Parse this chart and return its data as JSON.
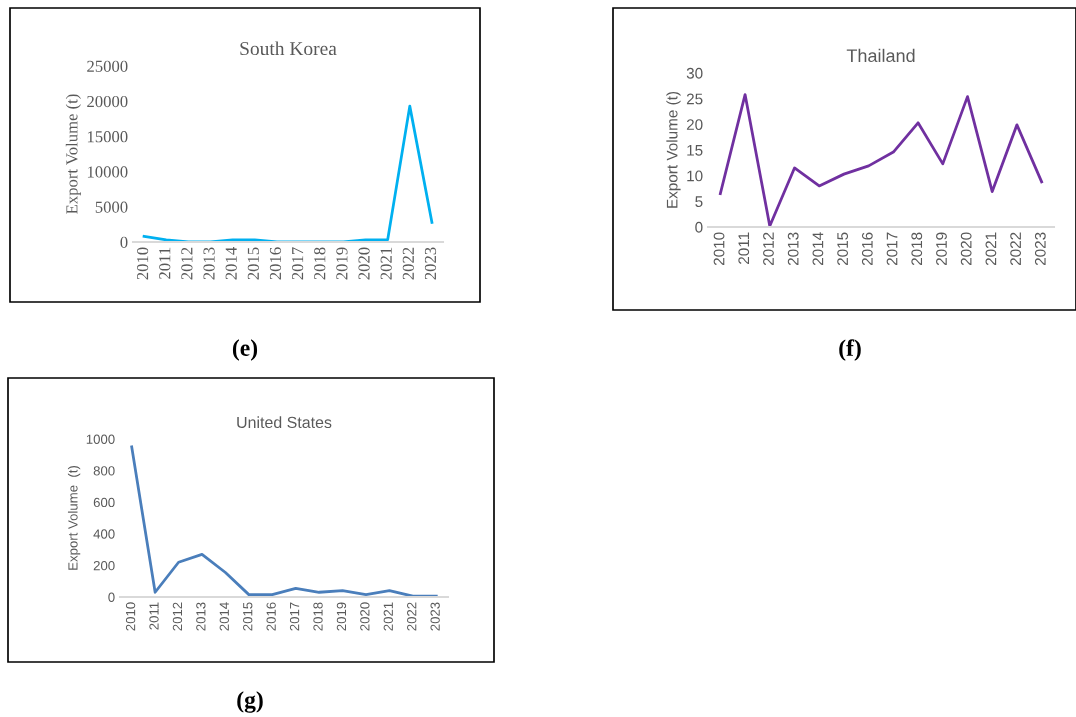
{
  "chart_data": [
    {
      "type": "line",
      "title": "South Korea",
      "ylabel": "Export Volume (t)",
      "categories": [
        "2010",
        "2011",
        "2012",
        "2013",
        "2014",
        "2015",
        "2016",
        "2017",
        "2018",
        "2019",
        "2020",
        "2021",
        "2022",
        "2023"
      ],
      "series": [
        {
          "color": "#00b0f0",
          "values": [
            800,
            300,
            0,
            0,
            300,
            300,
            0,
            0,
            0,
            0,
            300,
            300,
            19300,
            2800
          ]
        }
      ],
      "ylim": [
        0,
        25000
      ],
      "yticks": [
        0,
        5000,
        10000,
        15000,
        20000,
        25000
      ],
      "grid": false,
      "marker": "none",
      "line_style": "solid",
      "annotations": [
        "(e)"
      ]
    },
    {
      "type": "line",
      "title": "Thailand",
      "ylabel": "Export Volume (t)",
      "categories": [
        "2010",
        "2011",
        "2012",
        "2013",
        "2014",
        "2015",
        "2016",
        "2017",
        "2018",
        "2019",
        "2020",
        "2021",
        "2022",
        "2023"
      ],
      "series": [
        {
          "color": "#7030a0",
          "values": [
            6.5,
            25.8,
            0.2,
            11.5,
            8,
            10.3,
            11.9,
            14.6,
            20.3,
            12.3,
            25.4,
            6.9,
            19.9,
            8.8
          ]
        }
      ],
      "ylim": [
        0,
        30
      ],
      "yticks": [
        0,
        5,
        10,
        15,
        20,
        25,
        30
      ],
      "grid": false,
      "marker": "none",
      "line_style": "solid",
      "annotations": [
        "(f)"
      ]
    },
    {
      "type": "line",
      "title": "United States",
      "ylabel": "Export Volume  (t)",
      "categories": [
        "2010",
        "2011",
        "2012",
        "2013",
        "2014",
        "2015",
        "2016",
        "2017",
        "2018",
        "2019",
        "2020",
        "2021",
        "2022",
        "2023"
      ],
      "series": [
        {
          "color": "#4a7ebb",
          "values": [
            950,
            30,
            220,
            270,
            155,
            15,
            15,
            55,
            30,
            40,
            15,
            40,
            5,
            5
          ]
        }
      ],
      "ylim": [
        0,
        1000
      ],
      "yticks": [
        0,
        200,
        400,
        600,
        800,
        1000
      ],
      "grid": false,
      "marker": "none",
      "line_style": "solid",
      "annotations": [
        "(g)"
      ]
    }
  ]
}
